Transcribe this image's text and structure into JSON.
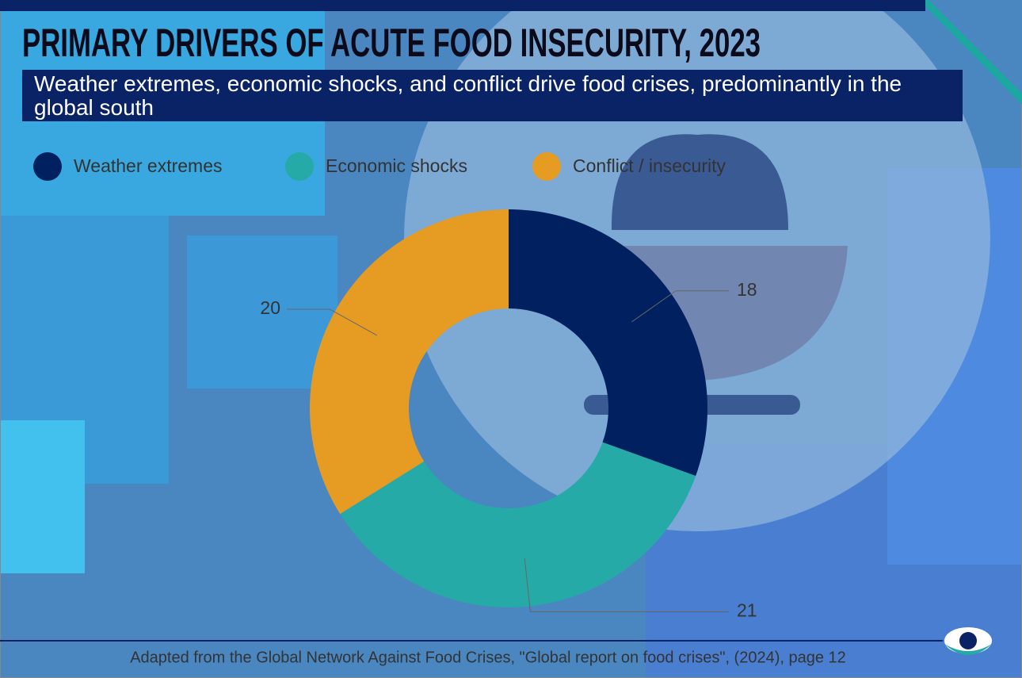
{
  "chart_data": {
    "type": "donut",
    "title": "PRIMARY DRIVERS OF ACUTE FOOD INSECURITY, 2023",
    "subtitle": "Weather extremes, economic shocks, and conflict drive food crises, predominantly in the global south",
    "categories": [
      "Weather extremes",
      "Economic shocks",
      "Conflict / insecurity"
    ],
    "values": [
      18,
      21,
      20
    ],
    "colors": [
      "#002060",
      "#26aaa8",
      "#e69b23"
    ],
    "source": "Adapted from the Global Network Against Food Crises, \"Global report on food crises\", (2024), page 12"
  }
}
